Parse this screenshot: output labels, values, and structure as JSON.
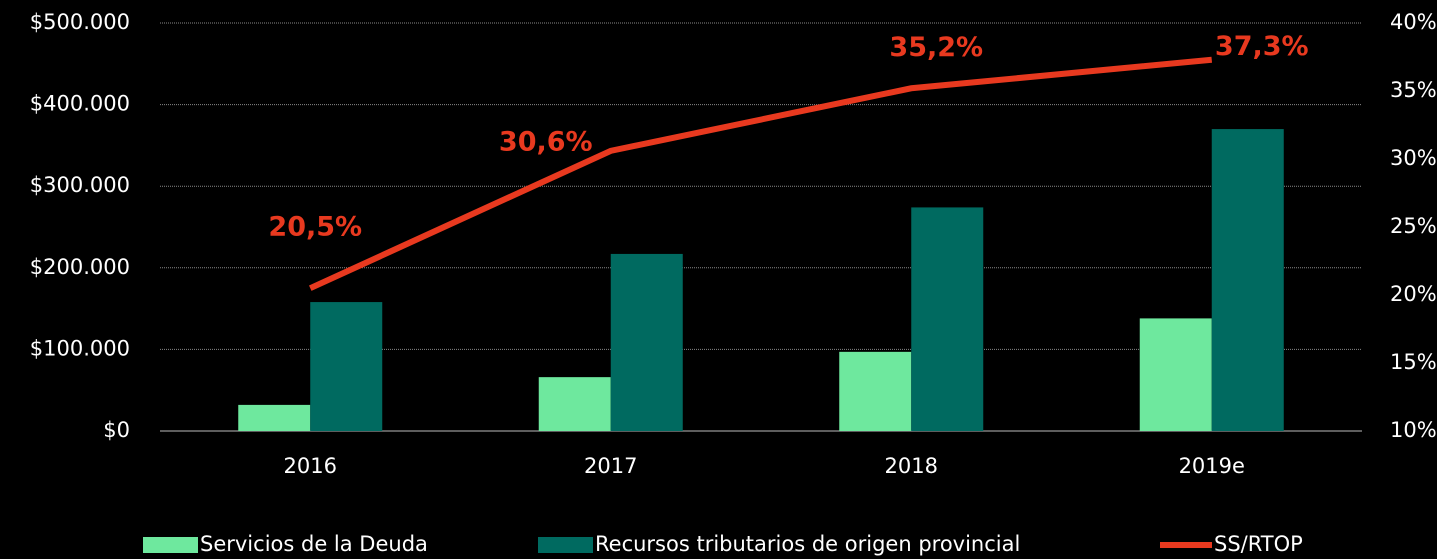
{
  "chart_data": {
    "type": "bar",
    "categories": [
      "2016",
      "2017",
      "2018",
      "2019e"
    ],
    "series": [
      {
        "name": "Servicios de la Deuda",
        "type": "bar",
        "color": "#6ee89e",
        "values": [
          32000,
          66000,
          97000,
          138000
        ]
      },
      {
        "name": "Recursos tributarios de origen provincial",
        "type": "bar",
        "color": "#006a60",
        "values": [
          158000,
          217000,
          274000,
          370000
        ]
      },
      {
        "name": "SS/RTOP",
        "type": "line",
        "axis": "y2",
        "color": "#e8391f",
        "values": [
          20.5,
          30.6,
          35.2,
          37.3
        ],
        "value_labels": [
          "20,5%",
          "30,6%",
          "35,2%",
          "37,3%"
        ]
      }
    ],
    "ylim": [
      0,
      500000
    ],
    "yticks": [
      {
        "value": 0,
        "label": "$0"
      },
      {
        "value": 100000,
        "label": "$100.000"
      },
      {
        "value": 200000,
        "label": "$200.000"
      },
      {
        "value": 300000,
        "label": "$300.000"
      },
      {
        "value": 400000,
        "label": "$400.000"
      },
      {
        "value": 500000,
        "label": "$500.000"
      }
    ],
    "y2lim": [
      10,
      40
    ],
    "y2ticks": [
      {
        "value": 10,
        "label": "10%"
      },
      {
        "value": 15,
        "label": "15%"
      },
      {
        "value": 20,
        "label": "20%"
      },
      {
        "value": 25,
        "label": "25%"
      },
      {
        "value": 30,
        "label": "30%"
      },
      {
        "value": 35,
        "label": "35%"
      },
      {
        "value": 40,
        "label": "40%"
      }
    ],
    "grid": true,
    "legend": "bottom"
  }
}
